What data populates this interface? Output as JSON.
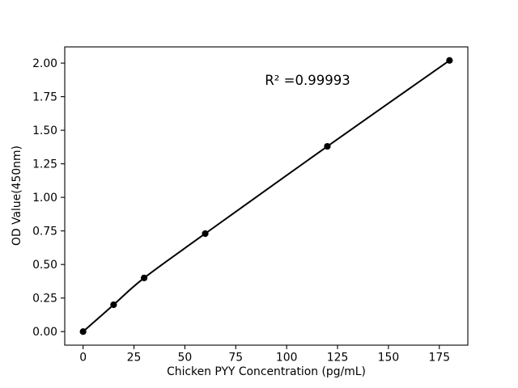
{
  "chart_data": {
    "type": "line",
    "title": "",
    "xlabel": "Chicken PYY Concentration (pg/mL)",
    "ylabel": "OD Value(450nm)",
    "annotation": "R² =0.99993",
    "annotation_xy": [
      110,
      1.87
    ],
    "x": [
      0,
      15,
      30,
      60,
      120,
      180
    ],
    "y": [
      0.0,
      0.2,
      0.4,
      0.73,
      1.38,
      2.02
    ],
    "x_ticks": [
      "0",
      "25",
      "50",
      "75",
      "100",
      "125",
      "150",
      "175"
    ],
    "y_ticks": [
      "0.00",
      "0.25",
      "0.50",
      "0.75",
      "1.00",
      "1.25",
      "1.50",
      "1.75",
      "2.00"
    ],
    "xlim": [
      -9,
      189
    ],
    "ylim": [
      -0.101,
      2.121
    ],
    "grid": false,
    "legend": "none",
    "line_color": "#000000",
    "marker_color": "#000000",
    "axis_color": "#000000",
    "background": "#ffffff"
  }
}
